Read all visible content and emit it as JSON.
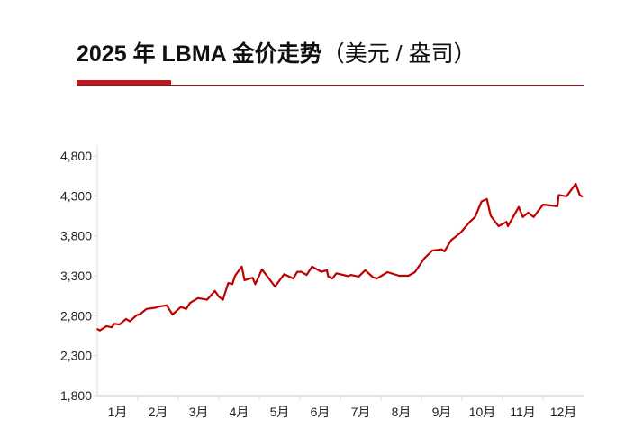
{
  "title": {
    "main": "2025 年 LBMA 金价走势",
    "unit": "（美元 / 盎司）"
  },
  "colors": {
    "line": "#c00000",
    "accent_bar": "#c01920",
    "axis": "#e0dcd8"
  },
  "chart_data": {
    "type": "line",
    "title": "2025 年 LBMA 金价走势（美元 / 盎司）",
    "xlabel": "",
    "ylabel": "",
    "ylim": [
      1800,
      4800
    ],
    "yticks": [
      1800,
      2300,
      2800,
      3300,
      3800,
      4300,
      4800
    ],
    "ytick_labels": [
      "1,800",
      "2,300",
      "2,800",
      "3,300",
      "3,800",
      "4,300",
      "4,800"
    ],
    "xtick_labels": [
      "1月",
      "2月",
      "3月",
      "4月",
      "5月",
      "6月",
      "7月",
      "8月",
      "9月",
      "10月",
      "11月",
      "12月"
    ],
    "grid": false,
    "series": [
      {
        "x": [
          "2025-01-01",
          "2025-01-03",
          "2025-01-08",
          "2025-01-12",
          "2025-01-14",
          "2025-01-18",
          "2025-01-23",
          "2025-01-26",
          "2025-01-31",
          "2025-02-03",
          "2025-02-07",
          "2025-02-13",
          "2025-02-16",
          "2025-02-21",
          "2025-02-25",
          "2025-03-03",
          "2025-03-07",
          "2025-03-10",
          "2025-03-16",
          "2025-03-23",
          "2025-03-29",
          "2025-04-01",
          "2025-04-04",
          "2025-04-08",
          "2025-04-11",
          "2025-04-13",
          "2025-04-18",
          "2025-04-20",
          "2025-04-26",
          "2025-04-28",
          "2025-05-03",
          "2025-05-13",
          "2025-05-20",
          "2025-05-27",
          "2025-05-30",
          "2025-06-02",
          "2025-06-06",
          "2025-06-10",
          "2025-06-17",
          "2025-06-21",
          "2025-06-22",
          "2025-06-25",
          "2025-06-28",
          "2025-07-07",
          "2025-07-09",
          "2025-07-15",
          "2025-07-20",
          "2025-07-26",
          "2025-07-29",
          "2025-08-06",
          "2025-08-15",
          "2025-08-22",
          "2025-08-27",
          "2025-09-03",
          "2025-09-09",
          "2025-09-16",
          "2025-09-18",
          "2025-09-23",
          "2025-09-30",
          "2025-10-07",
          "2025-10-11",
          "2025-10-16",
          "2025-10-20",
          "2025-10-23",
          "2025-10-29",
          "2025-11-04",
          "2025-11-05",
          "2025-11-13",
          "2025-11-16",
          "2025-11-20",
          "2025-11-24",
          "2025-12-01",
          "2025-12-07",
          "2025-12-12",
          "2025-12-13",
          "2025-12-19",
          "2025-12-26",
          "2025-12-29",
          "2025-12-31"
        ],
        "values": [
          2635,
          2615,
          2670,
          2655,
          2700,
          2690,
          2760,
          2730,
          2805,
          2825,
          2885,
          2900,
          2915,
          2930,
          2815,
          2910,
          2885,
          2960,
          3020,
          3000,
          3110,
          3040,
          3000,
          3210,
          3195,
          3300,
          3415,
          3245,
          3275,
          3195,
          3380,
          3165,
          3320,
          3265,
          3350,
          3350,
          3310,
          3415,
          3350,
          3370,
          3290,
          3265,
          3330,
          3295,
          3310,
          3290,
          3370,
          3280,
          3265,
          3345,
          3300,
          3300,
          3345,
          3515,
          3615,
          3630,
          3605,
          3745,
          3840,
          3975,
          4035,
          4230,
          4260,
          4050,
          3920,
          3975,
          3920,
          4160,
          4035,
          4090,
          4035,
          4190,
          4180,
          4170,
          4310,
          4295,
          4450,
          4315,
          4290
        ]
      }
    ]
  }
}
